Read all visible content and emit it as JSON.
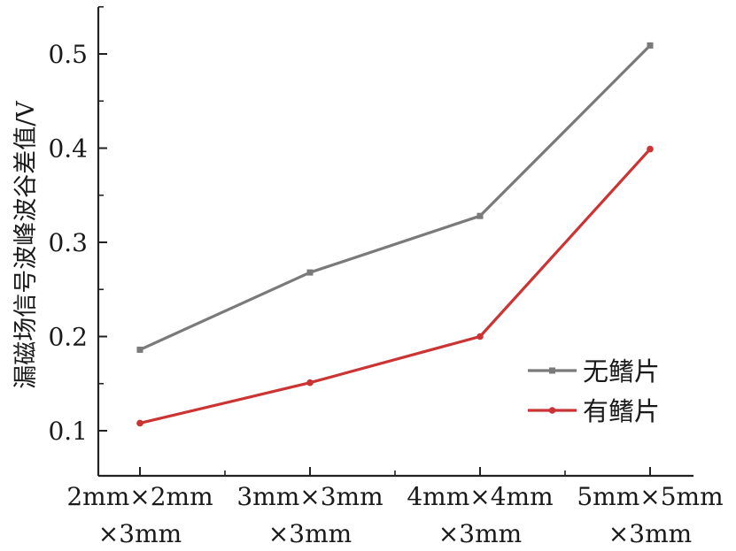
{
  "chart_data": {
    "type": "line",
    "categories": [
      [
        "2mm×2mm",
        "×3mm"
      ],
      [
        "3mm×3mm",
        "×3mm"
      ],
      [
        "4mm×4mm",
        "×3mm"
      ],
      [
        "5mm×5mm",
        "×3mm"
      ]
    ],
    "ylabel": "漏磁场信号波峰波谷差值/V",
    "ylim": [
      0.05,
      0.56
    ],
    "yticks": [
      "0.1",
      "0.2",
      "0.3",
      "0.4",
      "0.5"
    ],
    "ytick_values": [
      0.1,
      0.2,
      0.3,
      0.4,
      0.5
    ],
    "grid": false,
    "legend_position": "bottom-right",
    "series": [
      {
        "name": "无鳍片",
        "color": "#7a7a7a",
        "values": [
          0.186,
          0.268,
          0.328,
          0.509
        ]
      },
      {
        "name": "有鳍片",
        "color": "#cc3333",
        "values": [
          0.108,
          0.151,
          0.2,
          0.399
        ]
      }
    ]
  }
}
